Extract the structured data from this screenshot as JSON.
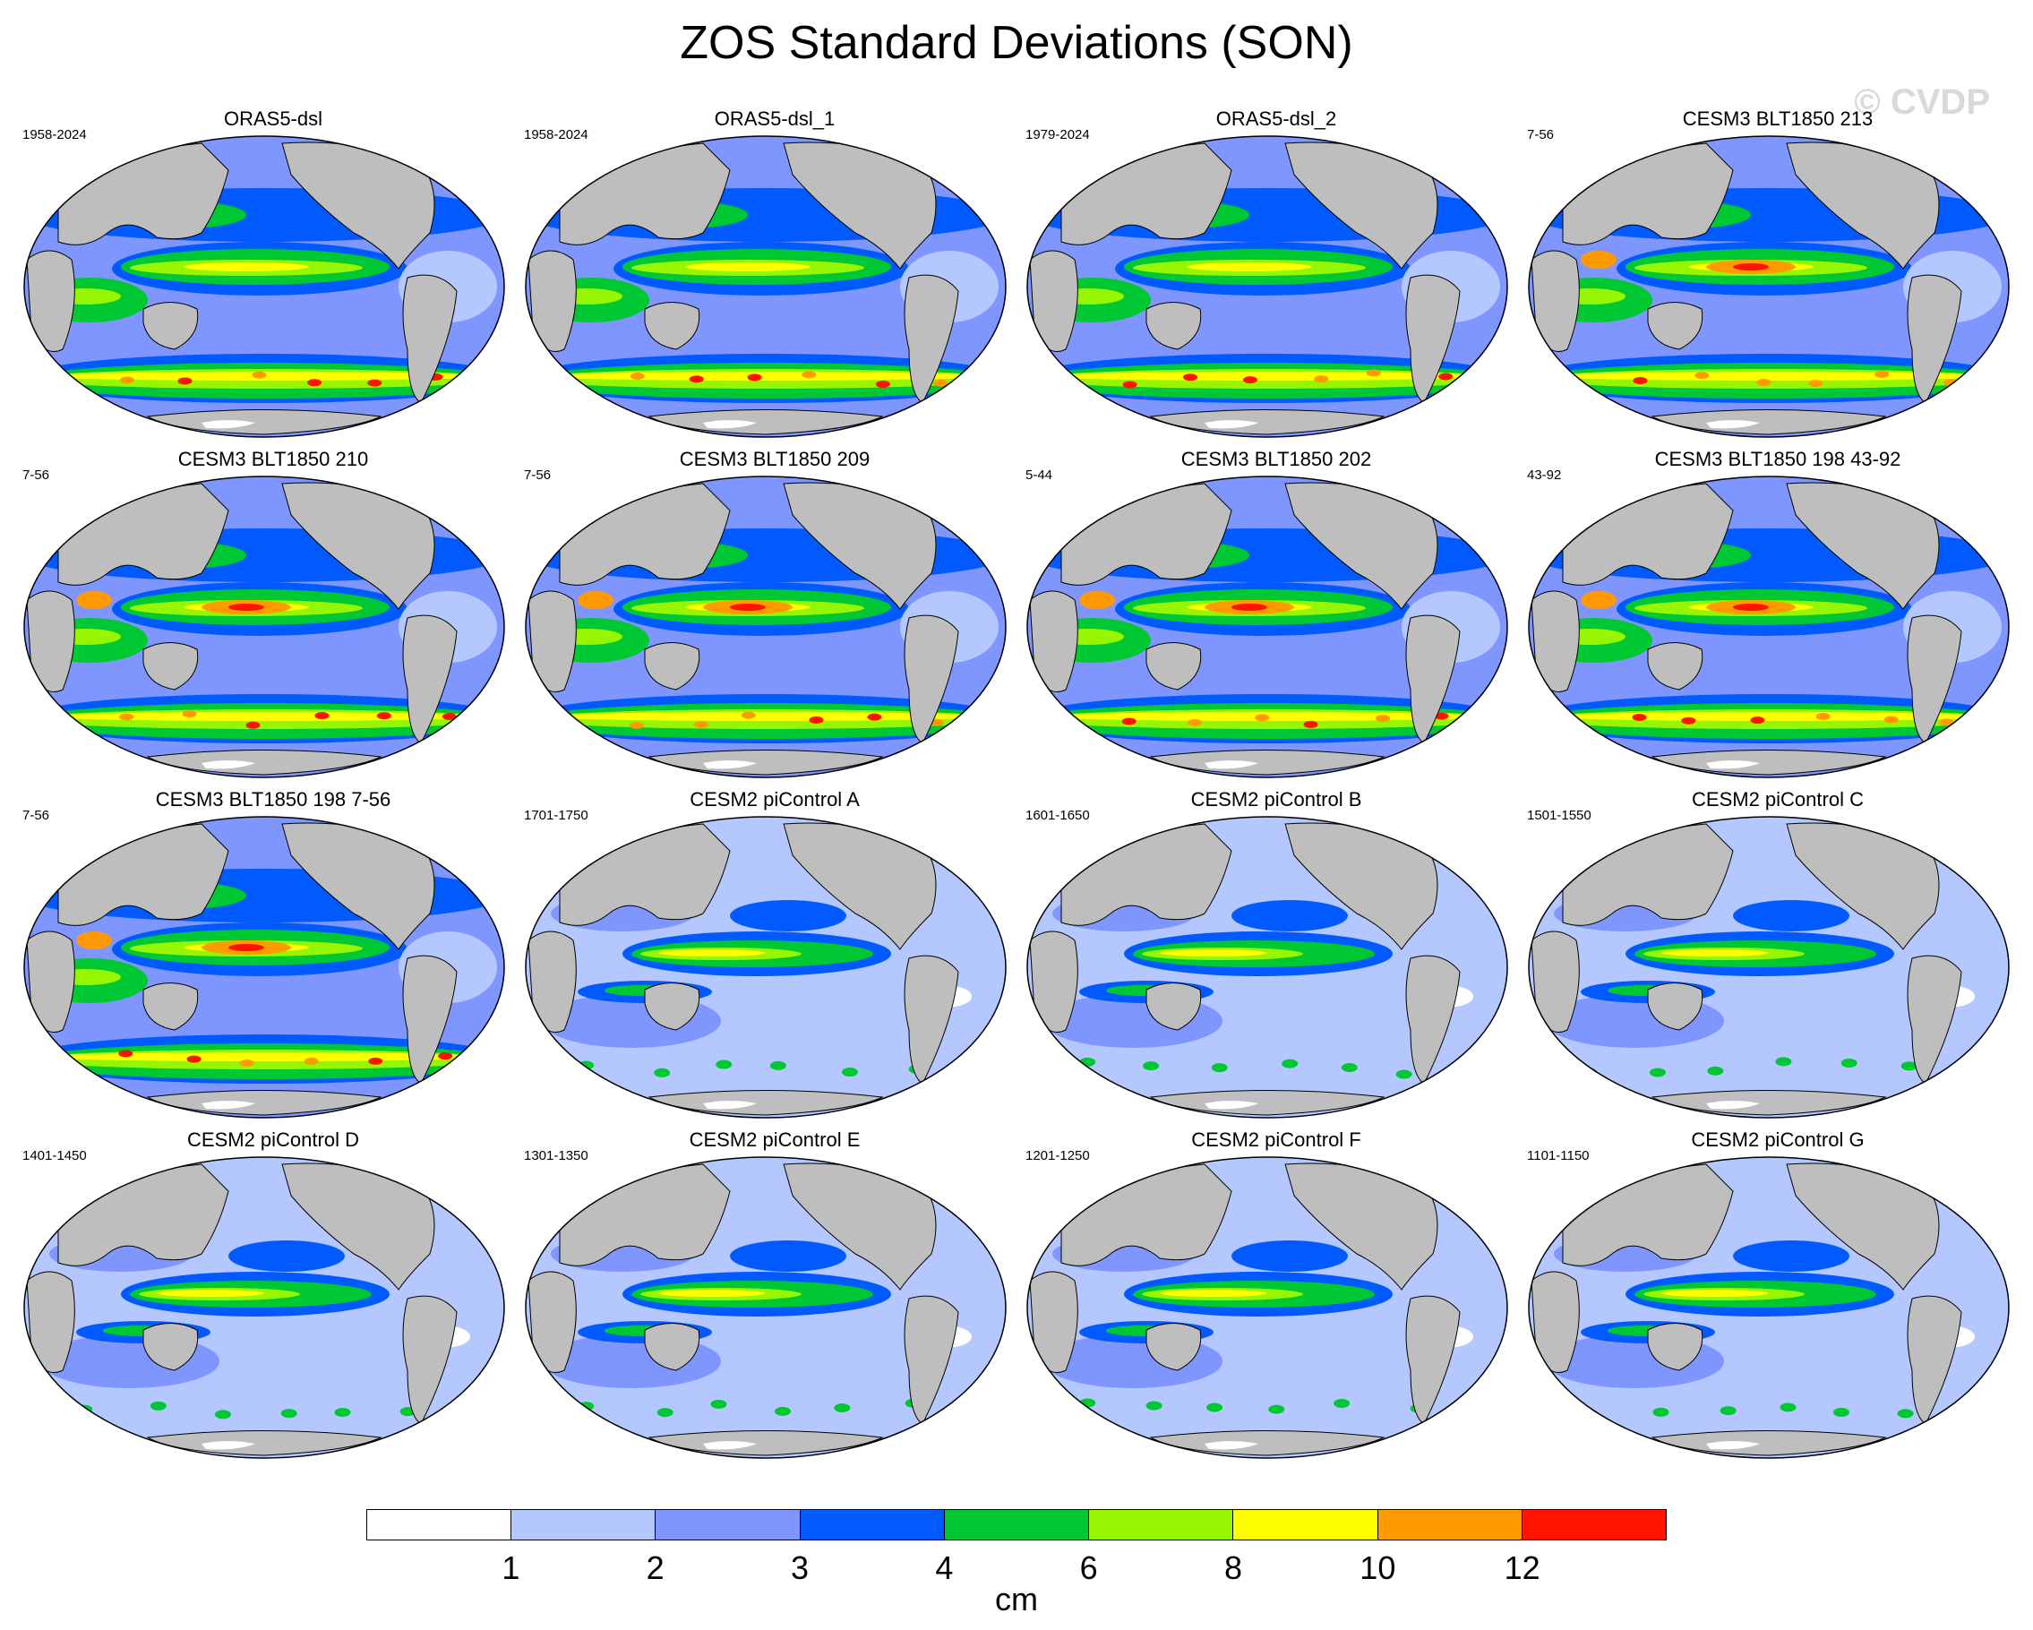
{
  "title": "ZOS Standard Deviations (SON)",
  "watermark": "© CVDP",
  "panels": [
    {
      "title": "ORAS5-dsl",
      "years": "1958-2024",
      "regime": "obs"
    },
    {
      "title": "ORAS5-dsl_1",
      "years": "1958-2024",
      "regime": "obs"
    },
    {
      "title": "ORAS5-dsl_2",
      "years": "1979-2024",
      "regime": "obs"
    },
    {
      "title": "CESM3 BLT1850 213",
      "years": "7-56",
      "regime": "cesm3"
    },
    {
      "title": "CESM3 BLT1850 210",
      "years": "7-56",
      "regime": "cesm3"
    },
    {
      "title": "CESM3 BLT1850 209",
      "years": "7-56",
      "regime": "cesm3"
    },
    {
      "title": "CESM3 BLT1850 202",
      "years": "5-44",
      "regime": "cesm3"
    },
    {
      "title": "CESM3 BLT1850 198 43-92",
      "years": "43-92",
      "regime": "cesm3"
    },
    {
      "title": "CESM3 BLT1850 198 7-56",
      "years": "7-56",
      "regime": "cesm3"
    },
    {
      "title": "CESM2 piControl A",
      "years": "1701-1750",
      "regime": "cesm2"
    },
    {
      "title": "CESM2 piControl B",
      "years": "1601-1650",
      "regime": "cesm2"
    },
    {
      "title": "CESM2 piControl C",
      "years": "1501-1550",
      "regime": "cesm2"
    },
    {
      "title": "CESM2 piControl D",
      "years": "1401-1450",
      "regime": "cesm2"
    },
    {
      "title": "CESM2 piControl E",
      "years": "1301-1350",
      "regime": "cesm2"
    },
    {
      "title": "CESM2 piControl F",
      "years": "1201-1250",
      "regime": "cesm2"
    },
    {
      "title": "CESM2 piControl G",
      "years": "1101-1150",
      "regime": "cesm2"
    }
  ],
  "colorbar": {
    "colors": [
      "#ffffff",
      "#b4c8ff",
      "#7f96ff",
      "#005aff",
      "#00c832",
      "#96f500",
      "#ffff00",
      "#ff9b00",
      "#ff1400"
    ],
    "labels": [
      "1",
      "2",
      "3",
      "4",
      "6",
      "8",
      "10",
      "12"
    ],
    "units": "cm"
  },
  "colors": {
    "land": "#bebebe",
    "coast": "#000000"
  }
}
